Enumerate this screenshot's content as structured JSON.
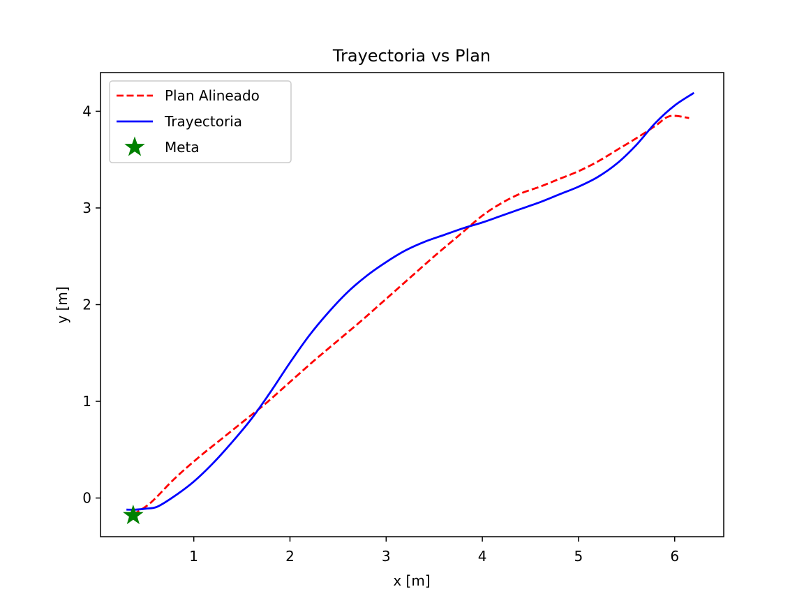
{
  "chart_data": {
    "type": "line",
    "title": "Trayectoria vs Plan",
    "xlabel": "x [m]",
    "ylabel": "y [m]",
    "xlim": [
      0.03,
      6.51
    ],
    "ylim": [
      -0.4,
      4.4
    ],
    "xticks": [
      1,
      2,
      3,
      4,
      5,
      6
    ],
    "yticks": [
      0,
      1,
      2,
      3,
      4
    ],
    "xtick_labels": [
      "1",
      "2",
      "3",
      "4",
      "5",
      "6"
    ],
    "ytick_labels": [
      "0",
      "1",
      "2",
      "3",
      "4"
    ],
    "grid": false,
    "legend_position": "upper-left",
    "series": [
      {
        "name": "Plan Alineado",
        "style": "dashed",
        "color": "#ff0000",
        "points": [
          [
            0.37,
            -0.17
          ],
          [
            0.55,
            -0.05
          ],
          [
            0.8,
            0.2
          ],
          [
            1.05,
            0.42
          ],
          [
            1.3,
            0.62
          ],
          [
            1.55,
            0.82
          ],
          [
            1.75,
            0.98
          ],
          [
            2.0,
            1.2
          ],
          [
            2.25,
            1.42
          ],
          [
            2.5,
            1.63
          ],
          [
            2.75,
            1.84
          ],
          [
            3.0,
            2.06
          ],
          [
            3.25,
            2.28
          ],
          [
            3.5,
            2.5
          ],
          [
            3.75,
            2.71
          ],
          [
            4.0,
            2.92
          ],
          [
            4.2,
            3.05
          ],
          [
            4.4,
            3.15
          ],
          [
            4.6,
            3.22
          ],
          [
            4.8,
            3.3
          ],
          [
            5.0,
            3.38
          ],
          [
            5.2,
            3.48
          ],
          [
            5.4,
            3.6
          ],
          [
            5.6,
            3.72
          ],
          [
            5.8,
            3.85
          ],
          [
            5.95,
            3.95
          ],
          [
            6.15,
            3.93
          ]
        ]
      },
      {
        "name": "Trayectoria",
        "style": "solid",
        "color": "#0000ff",
        "points": [
          [
            0.3,
            -0.12
          ],
          [
            0.4,
            -0.12
          ],
          [
            0.5,
            -0.11
          ],
          [
            0.62,
            -0.09
          ],
          [
            0.8,
            0.02
          ],
          [
            1.0,
            0.17
          ],
          [
            1.2,
            0.36
          ],
          [
            1.4,
            0.58
          ],
          [
            1.6,
            0.82
          ],
          [
            1.8,
            1.1
          ],
          [
            2.0,
            1.4
          ],
          [
            2.2,
            1.68
          ],
          [
            2.4,
            1.92
          ],
          [
            2.6,
            2.13
          ],
          [
            2.8,
            2.3
          ],
          [
            3.0,
            2.44
          ],
          [
            3.2,
            2.56
          ],
          [
            3.4,
            2.65
          ],
          [
            3.6,
            2.72
          ],
          [
            3.8,
            2.79
          ],
          [
            4.0,
            2.85
          ],
          [
            4.2,
            2.92
          ],
          [
            4.4,
            2.99
          ],
          [
            4.6,
            3.06
          ],
          [
            4.8,
            3.14
          ],
          [
            5.0,
            3.22
          ],
          [
            5.2,
            3.32
          ],
          [
            5.4,
            3.46
          ],
          [
            5.6,
            3.65
          ],
          [
            5.8,
            3.88
          ],
          [
            6.0,
            4.06
          ],
          [
            6.2,
            4.19
          ]
        ]
      }
    ],
    "markers": [
      {
        "name": "Meta",
        "shape": "star",
        "color": "#008000",
        "x": 0.37,
        "y": -0.18
      }
    ]
  }
}
